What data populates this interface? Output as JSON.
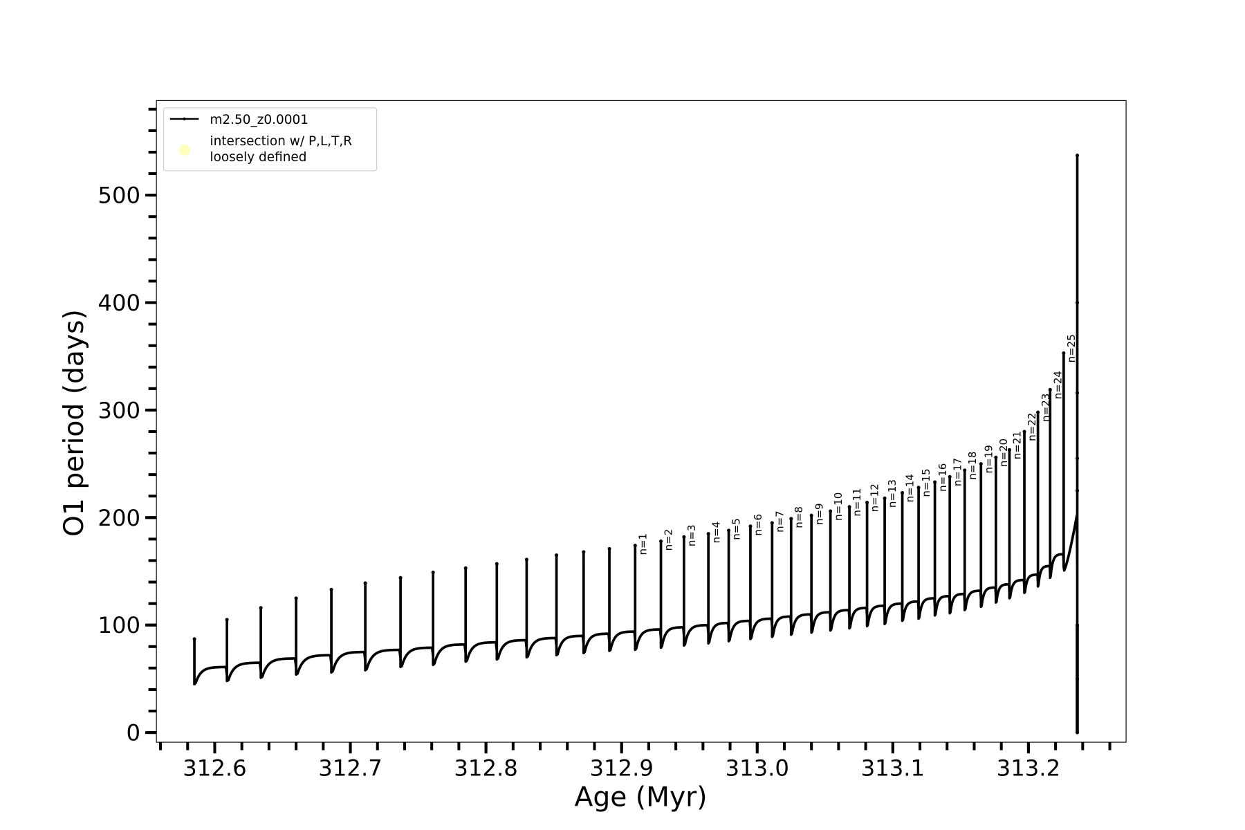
{
  "chart_data": {
    "type": "line",
    "xlabel": "Age (Myr)",
    "ylabel": "O1 period (days)",
    "xlim": [
      312.557,
      313.272
    ],
    "ylim": [
      -9,
      588
    ],
    "x_ticks": [
      "312.6",
      "312.7",
      "312.8",
      "312.9",
      "313.0",
      "313.1",
      "313.2"
    ],
    "x_tick_values": [
      312.6,
      312.7,
      312.8,
      312.9,
      313.0,
      313.1,
      313.2
    ],
    "x_minor_step": 0.02,
    "y_ticks": [
      "0",
      "100",
      "200",
      "300",
      "400",
      "500"
    ],
    "y_tick_values": [
      0,
      100,
      200,
      300,
      400,
      500
    ],
    "y_minor_step": 20,
    "grid": false,
    "legend": {
      "placement": "top-left",
      "entries": [
        {
          "label": "m2.50_z0.0001",
          "marker": "line-with-dots",
          "color": "#000000"
        },
        {
          "label": "intersection w/ P,L,T,R\nloosely defined",
          "label_lines": [
            "intersection w/ P,L,T,R",
            "loosely defined"
          ],
          "marker": "circle",
          "color": "#ffffb3"
        }
      ]
    },
    "series": [
      {
        "name": "m2.50_z0.0001",
        "color": "#000000",
        "pulses": [
          {
            "age": 312.585,
            "peak": 87,
            "dip": 42,
            "plateau": 61
          },
          {
            "age": 312.609,
            "peak": 105,
            "dip": 44,
            "plateau": 65
          },
          {
            "age": 312.634,
            "peak": 116,
            "dip": 47,
            "plateau": 69
          },
          {
            "age": 312.66,
            "peak": 125,
            "dip": 50,
            "plateau": 72
          },
          {
            "age": 312.686,
            "peak": 133,
            "dip": 52,
            "plateau": 75
          },
          {
            "age": 312.711,
            "peak": 139,
            "dip": 54,
            "plateau": 77
          },
          {
            "age": 312.737,
            "peak": 144,
            "dip": 57,
            "plateau": 79
          },
          {
            "age": 312.761,
            "peak": 149,
            "dip": 59,
            "plateau": 82
          },
          {
            "age": 312.785,
            "peak": 153,
            "dip": 62,
            "plateau": 84
          },
          {
            "age": 312.808,
            "peak": 157,
            "dip": 64,
            "plateau": 86
          },
          {
            "age": 312.83,
            "peak": 161,
            "dip": 66,
            "plateau": 88
          },
          {
            "age": 312.852,
            "peak": 165,
            "dip": 68,
            "plateau": 90
          },
          {
            "age": 312.872,
            "peak": 168,
            "dip": 70,
            "plateau": 92
          },
          {
            "age": 312.891,
            "peak": 171,
            "dip": 72,
            "plateau": 94
          },
          {
            "age": 312.91,
            "peak": 174,
            "dip": 73,
            "plateau": 96,
            "label": "n=1"
          },
          {
            "age": 312.929,
            "peak": 178,
            "dip": 75,
            "plateau": 98,
            "label": "n=2"
          },
          {
            "age": 312.946,
            "peak": 182,
            "dip": 77,
            "plateau": 100,
            "label": "n=3"
          },
          {
            "age": 312.964,
            "peak": 185,
            "dip": 79,
            "plateau": 102,
            "label": "n=4"
          },
          {
            "age": 312.979,
            "peak": 188,
            "dip": 81,
            "plateau": 104,
            "label": "n=5"
          },
          {
            "age": 312.995,
            "peak": 192,
            "dip": 83,
            "plateau": 106,
            "label": "n=6"
          },
          {
            "age": 313.011,
            "peak": 195,
            "dip": 85,
            "plateau": 108,
            "label": "n=7"
          },
          {
            "age": 313.025,
            "peak": 199,
            "dip": 87,
            "plateau": 110,
            "label": "n=8"
          },
          {
            "age": 313.04,
            "peak": 202,
            "dip": 89,
            "plateau": 112,
            "label": "n=9"
          },
          {
            "age": 313.054,
            "peak": 206,
            "dip": 91,
            "plateau": 114,
            "label": "n=10"
          },
          {
            "age": 313.068,
            "peak": 210,
            "dip": 93,
            "plateau": 116,
            "label": "n=11"
          },
          {
            "age": 313.081,
            "peak": 214,
            "dip": 95,
            "plateau": 118,
            "label": "n=12"
          },
          {
            "age": 313.094,
            "peak": 218,
            "dip": 97,
            "plateau": 120,
            "label": "n=13"
          },
          {
            "age": 313.107,
            "peak": 223,
            "dip": 100,
            "plateau": 122,
            "label": "n=14"
          },
          {
            "age": 313.119,
            "peak": 228,
            "dip": 102,
            "plateau": 125,
            "label": "n=15"
          },
          {
            "age": 313.131,
            "peak": 233,
            "dip": 105,
            "plateau": 127,
            "label": "n=16"
          },
          {
            "age": 313.142,
            "peak": 238,
            "dip": 107,
            "plateau": 129,
            "label": "n=17"
          },
          {
            "age": 313.153,
            "peak": 244,
            "dip": 110,
            "plateau": 132,
            "label": "n=18"
          },
          {
            "age": 313.165,
            "peak": 250,
            "dip": 113,
            "plateau": 135,
            "label": "n=19"
          },
          {
            "age": 313.176,
            "peak": 256,
            "dip": 117,
            "plateau": 138,
            "label": "n=20"
          },
          {
            "age": 313.186,
            "peak": 263,
            "dip": 121,
            "plateau": 142,
            "label": "n=21"
          },
          {
            "age": 313.197,
            "peak": 280,
            "dip": 126,
            "plateau": 147,
            "label": "n=22"
          },
          {
            "age": 313.207,
            "peak": 298,
            "dip": 132,
            "plateau": 155,
            "label": "n=23"
          },
          {
            "age": 313.216,
            "peak": 319,
            "dip": 140,
            "plateau": 166,
            "label": "n=24"
          },
          {
            "age": 313.226,
            "peak": 353,
            "dip": 150,
            "plateau": 202,
            "label": "n=25"
          }
        ],
        "final_spike": {
          "age": 313.236,
          "peak": 537,
          "min": 0,
          "scatter_values": [
            537,
            400,
            316,
            255,
            225,
            100,
            50,
            0
          ]
        }
      }
    ]
  }
}
